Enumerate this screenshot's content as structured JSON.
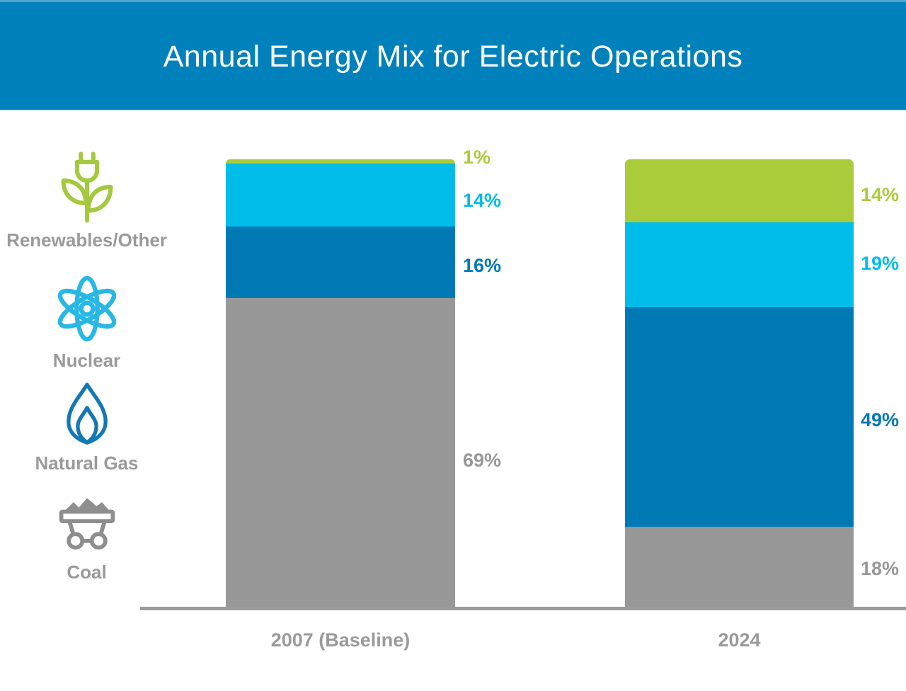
{
  "header": {
    "title": "Annual Energy Mix for Electric Operations",
    "bg_color": "#0081bb",
    "title_color": "#ffffff"
  },
  "legend": {
    "items": [
      {
        "label": "Renewables/Other",
        "icon": "plant-plug-icon",
        "color": "#a6c93c"
      },
      {
        "label": "Nuclear",
        "icon": "atom-icon",
        "color": "#29b8e5"
      },
      {
        "label": "Natural Gas",
        "icon": "flame-icon",
        "color": "#1478b5"
      },
      {
        "label": "Coal",
        "icon": "coal-cart-icon",
        "color": "#8e8e8e"
      }
    ],
    "label_color": "#9a9a9a"
  },
  "chart_data": {
    "type": "bar",
    "stacked": true,
    "title": "Annual Energy Mix for Electric Operations",
    "categories": [
      "2007 (Baseline)",
      "2024"
    ],
    "series": [
      {
        "name": "Renewables/Other",
        "key": "renewables",
        "color": "#abcc3a",
        "values": [
          1,
          14
        ],
        "labels": [
          "1%",
          "14%"
        ]
      },
      {
        "name": "Nuclear",
        "key": "nuclear",
        "color": "#00bce8",
        "values": [
          14,
          19
        ],
        "labels": [
          "14%",
          "19%"
        ]
      },
      {
        "name": "Natural Gas",
        "key": "natural-gas",
        "color": "#0079b5",
        "values": [
          16,
          49
        ],
        "labels": [
          "16%",
          "49%"
        ]
      },
      {
        "name": "Coal",
        "key": "coal",
        "color": "#989898",
        "values": [
          69,
          18
        ],
        "labels": [
          "69%",
          "18%"
        ]
      }
    ],
    "ylim": [
      0,
      100
    ],
    "grid": false,
    "legend_position": "left",
    "axis_color": "#9b9b9b",
    "value_label_position": "right-of-bar"
  }
}
